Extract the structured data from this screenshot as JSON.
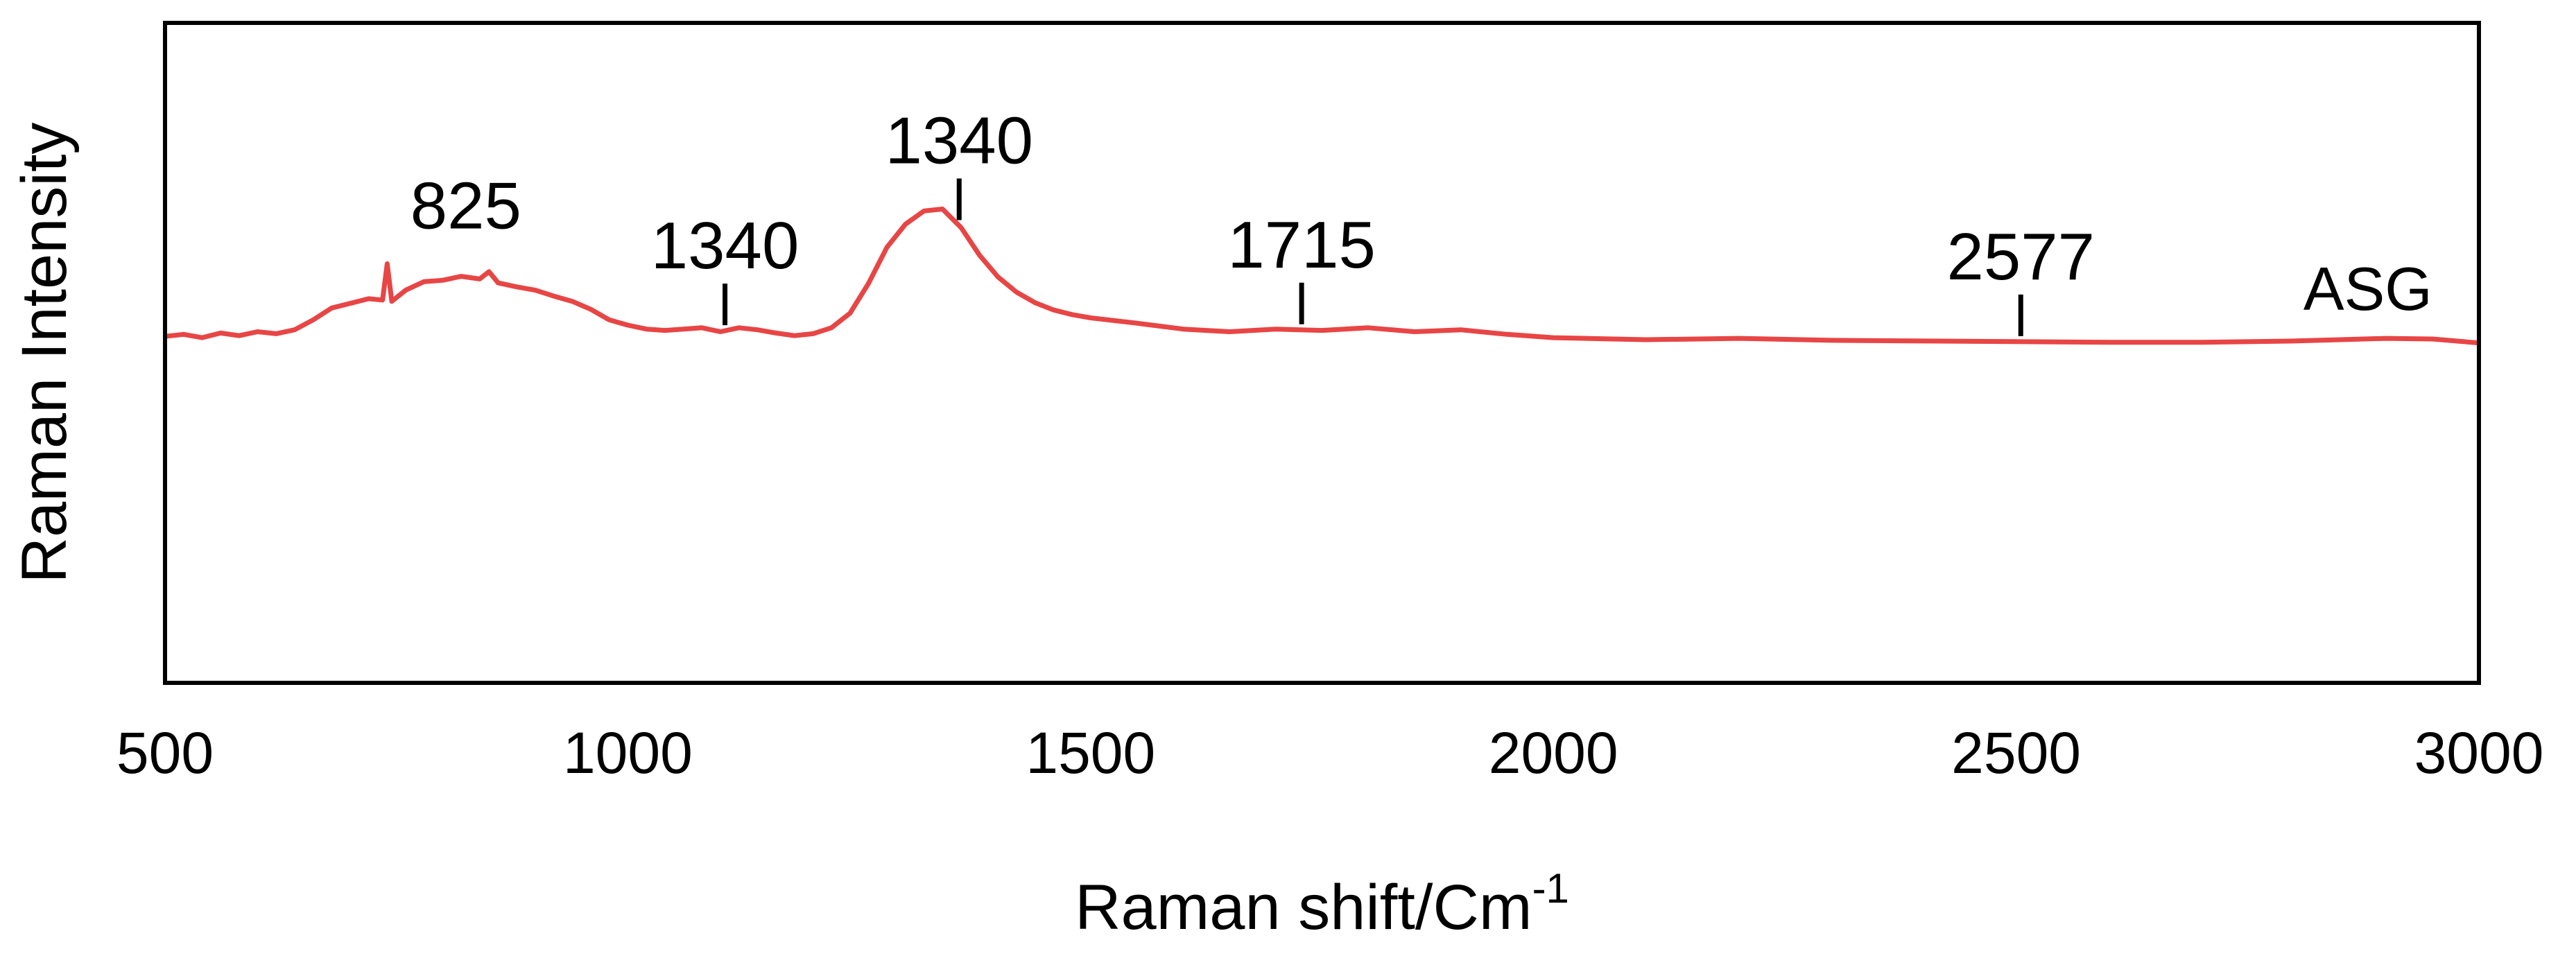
{
  "chart_data": {
    "type": "line",
    "xlabel": "Raman shift/Cm",
    "xlabel_superscript": "-1",
    "ylabel": "Raman Intensity",
    "xlim": [
      500,
      3000
    ],
    "ylim": [
      0,
      100
    ],
    "xticks": [
      500,
      1000,
      1500,
      2000,
      2500,
      3000
    ],
    "grid": false,
    "line_color": "#e84545",
    "series": [
      {
        "name": "ASG",
        "x": [
          500,
          520,
          540,
          560,
          580,
          600,
          620,
          640,
          660,
          680,
          700,
          720,
          735,
          740,
          745,
          760,
          780,
          800,
          820,
          840,
          850,
          860,
          880,
          900,
          920,
          940,
          960,
          980,
          1000,
          1020,
          1040,
          1060,
          1080,
          1100,
          1120,
          1140,
          1160,
          1180,
          1200,
          1220,
          1240,
          1260,
          1280,
          1300,
          1320,
          1340,
          1360,
          1380,
          1400,
          1420,
          1440,
          1460,
          1480,
          1500,
          1550,
          1600,
          1650,
          1700,
          1750,
          1800,
          1850,
          1900,
          1950,
          2000,
          2100,
          2200,
          2300,
          2400,
          2500,
          2600,
          2700,
          2800,
          2850,
          2900,
          2950,
          3000
        ],
        "y": [
          52.5,
          52.8,
          52.3,
          53.0,
          52.6,
          53.2,
          52.9,
          53.5,
          55.0,
          56.8,
          57.5,
          58.2,
          58.0,
          63.5,
          57.8,
          59.5,
          60.8,
          61.0,
          61.6,
          61.2,
          62.3,
          60.6,
          60.0,
          59.5,
          58.6,
          57.8,
          56.6,
          55.0,
          54.2,
          53.6,
          53.4,
          53.6,
          53.8,
          53.2,
          53.8,
          53.5,
          53.0,
          52.6,
          52.9,
          53.8,
          56.0,
          60.5,
          66.0,
          69.5,
          71.5,
          71.8,
          69.0,
          64.8,
          61.5,
          59.2,
          57.6,
          56.5,
          55.8,
          55.3,
          54.5,
          53.6,
          53.2,
          53.6,
          53.4,
          53.8,
          53.2,
          53.5,
          52.8,
          52.3,
          52.0,
          52.2,
          51.9,
          51.8,
          51.7,
          51.6,
          51.6,
          51.8,
          52.0,
          52.2,
          52.1,
          51.5
        ]
      }
    ],
    "annotations": [
      {
        "label": "825",
        "x": 825,
        "tick": false
      },
      {
        "label": "1340",
        "x": 1105,
        "tick": true
      },
      {
        "label": "1340",
        "x": 1358,
        "tick": true
      },
      {
        "label": "1715",
        "x": 1728,
        "tick": true
      },
      {
        "label": "2577",
        "x": 2505,
        "tick": true
      }
    ]
  }
}
